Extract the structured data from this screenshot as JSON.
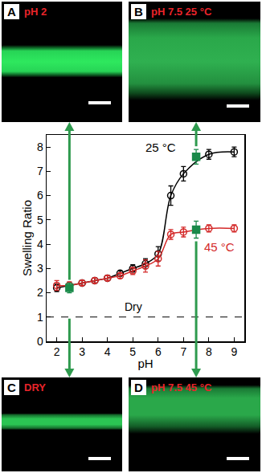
{
  "chart_data": {
    "type": "line",
    "x_label": "pH",
    "y_label": "Swelling Ratio",
    "xlim": [
      1.6,
      9.4
    ],
    "xticks": [
      2,
      3,
      4,
      5,
      6,
      7,
      8,
      9
    ],
    "ylim": [
      0,
      8.5
    ],
    "yticks": [
      0,
      1,
      2,
      3,
      4,
      5,
      6,
      7,
      8
    ],
    "grid": false,
    "series": [
      {
        "name": "25 °C",
        "color": "#000000",
        "marker": "circle-open",
        "line_style": "solid",
        "x": [
          2,
          2.5,
          3,
          3.5,
          4,
          4.5,
          5,
          5.5,
          6,
          6.5,
          7,
          8,
          9
        ],
        "values": [
          2.2,
          2.3,
          2.4,
          2.5,
          2.6,
          2.8,
          3.0,
          3.2,
          3.6,
          6.0,
          6.9,
          7.7,
          7.8
        ],
        "error": [
          0.15,
          0.1,
          0.1,
          0.1,
          0.1,
          0.1,
          0.15,
          0.2,
          0.3,
          0.4,
          0.3,
          0.2,
          0.2
        ]
      },
      {
        "name": "45 °C",
        "color": "#d42a2a",
        "marker": "circle-open",
        "line_style": "solid",
        "x": [
          2,
          2.5,
          3,
          3.5,
          4,
          4.5,
          5,
          5.5,
          6,
          6.5,
          7,
          8,
          9
        ],
        "values": [
          2.3,
          2.3,
          2.4,
          2.5,
          2.6,
          2.7,
          2.9,
          3.1,
          3.4,
          4.4,
          4.5,
          4.65,
          4.65
        ],
        "error": [
          0.2,
          0.15,
          0.1,
          0.1,
          0.1,
          0.1,
          0.15,
          0.25,
          0.3,
          0.2,
          0.2,
          0.15,
          0.15
        ]
      },
      {
        "color": "#1a8a4a",
        "marker": "square",
        "line_style": "none",
        "x": [
          2.5,
          7.5,
          7.5
        ],
        "values": [
          2.2,
          7.6,
          4.6
        ],
        "error": [
          0.2,
          0.3,
          0.35
        ]
      }
    ],
    "reference_lines": [
      {
        "value": 1,
        "label": "Dry",
        "line_style": "dash"
      }
    ]
  },
  "panels": [
    {
      "letter": "A",
      "caption": "pH 2"
    },
    {
      "letter": "B",
      "caption": "pH 7.5 25 °C"
    },
    {
      "letter": "C",
      "caption": "DRY"
    },
    {
      "letter": "D",
      "caption": "pH 7.5 45 °C"
    }
  ]
}
